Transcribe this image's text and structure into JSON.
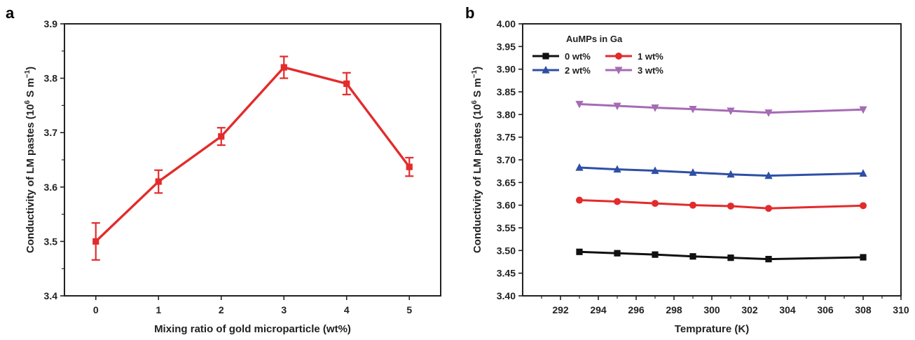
{
  "chart_data": [
    {
      "panel_label": "a",
      "type": "line",
      "xlabel": "Mixing ratio of gold microparticle (wt%)",
      "ylabel_main": "Conductivity of LM pastes (10",
      "ylabel_sup1": "6",
      "ylabel_mid": " S m",
      "ylabel_sup2": "−1",
      "ylabel_end": ")",
      "xlim": [
        -0.5,
        5.5
      ],
      "ylim": [
        3.4,
        3.9
      ],
      "xticks": [
        "0",
        "1",
        "2",
        "3",
        "4",
        "5"
      ],
      "yticks": [
        "3.4",
        "3.5",
        "3.6",
        "3.7",
        "3.8",
        "3.9"
      ],
      "series": [
        {
          "color": "#e32b2b",
          "marker": "square",
          "x": [
            0,
            1,
            2,
            3,
            4,
            5
          ],
          "y": [
            3.5,
            3.61,
            3.693,
            3.82,
            3.79,
            3.637
          ],
          "err": [
            0.034,
            0.021,
            0.016,
            0.02,
            0.02,
            0.017
          ]
        }
      ]
    },
    {
      "panel_label": "b",
      "type": "line",
      "xlabel": "Temprature (K)",
      "ylabel_main": "Conductivity of LM pastes (10",
      "ylabel_sup1": "6",
      "ylabel_mid": " S m",
      "ylabel_sup2": "−1",
      "ylabel_end": ")",
      "xlim": [
        290,
        310
      ],
      "ylim": [
        3.4,
        4.0
      ],
      "xticks": [
        "292",
        "294",
        "296",
        "298",
        "300",
        "302",
        "304",
        "306",
        "308",
        "310"
      ],
      "yticks": [
        "3.40",
        "3.45",
        "3.50",
        "3.55",
        "3.60",
        "3.65",
        "3.70",
        "3.75",
        "3.80",
        "3.85",
        "3.90",
        "3.95",
        "4.00"
      ],
      "legend_title": "AuMPs in Ga",
      "legend_position": "top-left",
      "series": [
        {
          "name": "0 wt%",
          "color": "#111111",
          "marker": "square",
          "x": [
            293,
            295,
            297,
            299,
            301,
            303,
            308
          ],
          "y": [
            3.497,
            3.494,
            3.491,
            3.487,
            3.484,
            3.481,
            3.485
          ]
        },
        {
          "name": "1 wt%",
          "color": "#e32b2b",
          "marker": "circle",
          "x": [
            293,
            295,
            297,
            299,
            301,
            303,
            308
          ],
          "y": [
            3.611,
            3.608,
            3.604,
            3.6,
            3.598,
            3.593,
            3.599
          ]
        },
        {
          "name": "2 wt%",
          "color": "#2f4fa6",
          "marker": "triangle-up",
          "x": [
            293,
            295,
            297,
            299,
            301,
            303,
            308
          ],
          "y": [
            3.683,
            3.679,
            3.676,
            3.672,
            3.668,
            3.665,
            3.67
          ]
        },
        {
          "name": "3 wt%",
          "color": "#a66bb5",
          "marker": "triangle-down",
          "x": [
            293,
            295,
            297,
            299,
            301,
            303,
            308
          ],
          "y": [
            3.823,
            3.819,
            3.815,
            3.812,
            3.808,
            3.804,
            3.811
          ]
        }
      ]
    }
  ]
}
